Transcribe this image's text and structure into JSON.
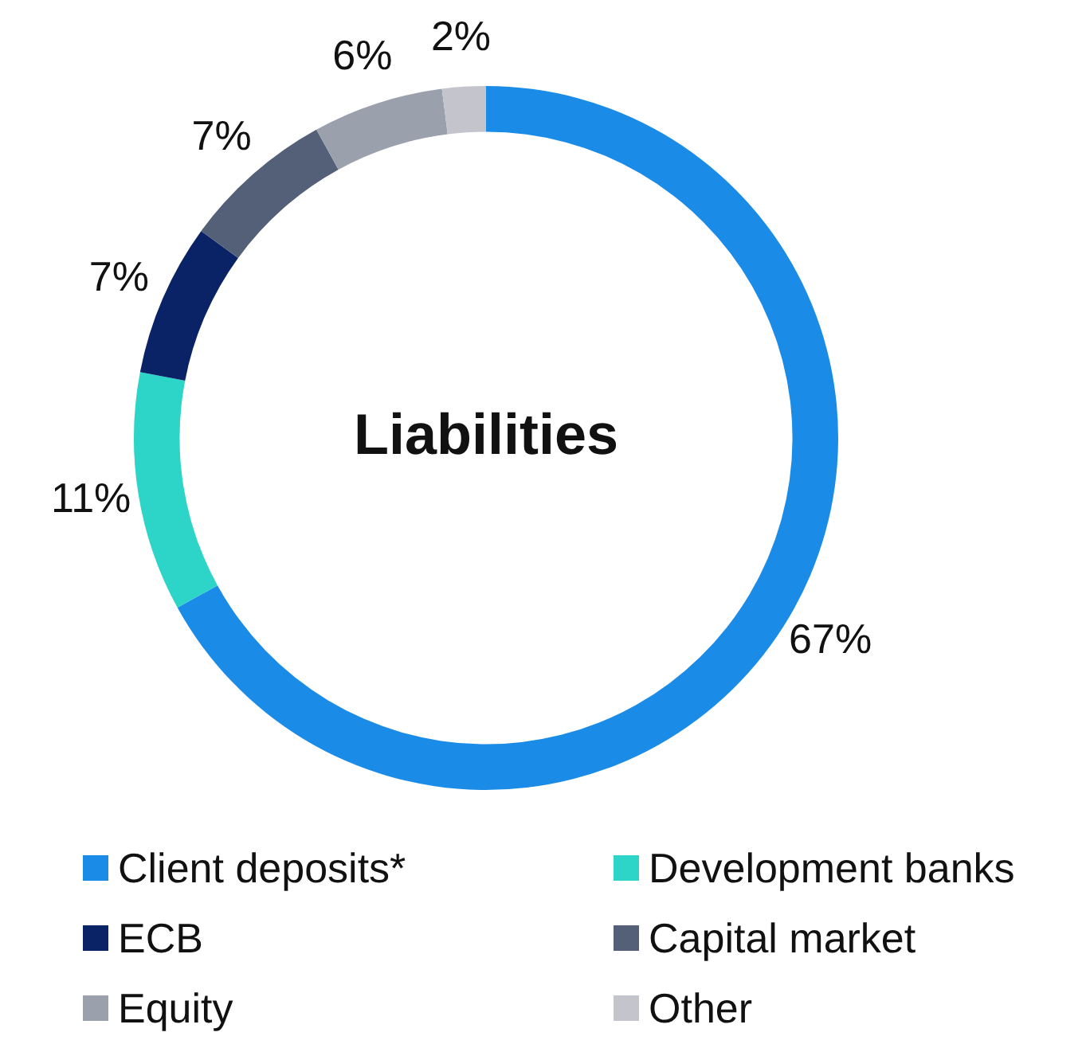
{
  "chart_data": {
    "type": "donut",
    "title": "Liabilities",
    "categories": [
      "Client deposits*",
      "Development banks",
      "ECB",
      "Capital market",
      "Equity",
      "Other"
    ],
    "values": [
      67,
      11,
      7,
      7,
      6,
      2
    ],
    "colors": [
      "#1a8ce8",
      "#2dd4c8",
      "#0a2266",
      "#545f78",
      "#9aa0ac",
      "#c4c4cc"
    ],
    "value_labels": [
      "67%",
      "11%",
      "7%",
      "7%",
      "6%",
      "2%"
    ],
    "legend": "bottom"
  }
}
